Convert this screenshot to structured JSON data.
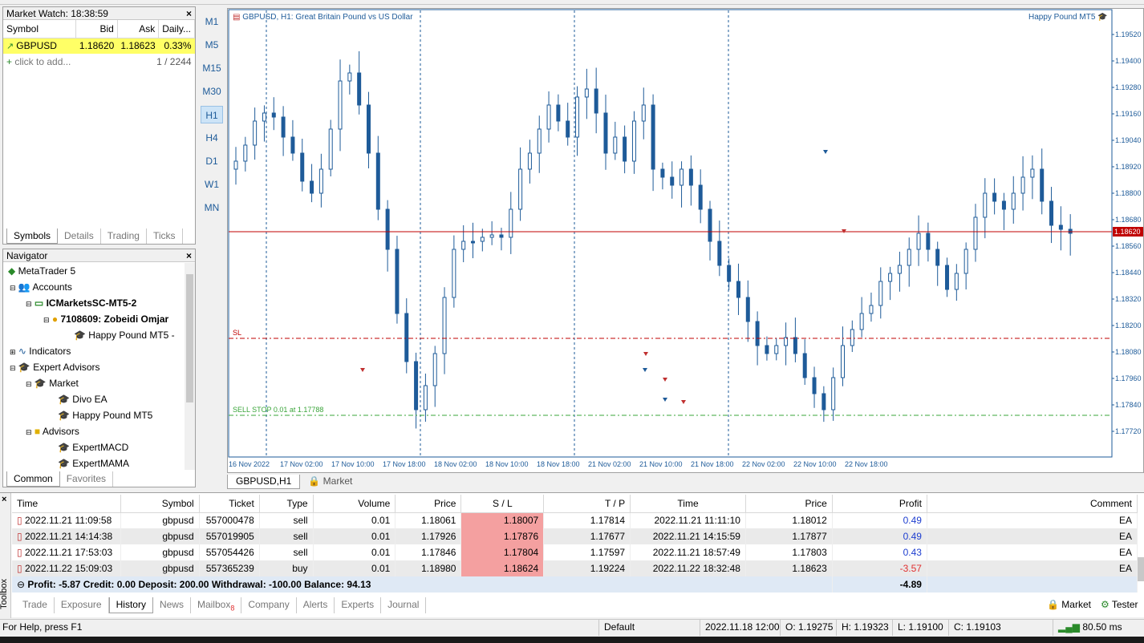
{
  "market_watch": {
    "title": "Market Watch: 18:38:59",
    "headers": [
      "Symbol",
      "Bid",
      "Ask",
      "Daily..."
    ],
    "row": {
      "symbol": "GBPUSD",
      "bid": "1.18620",
      "ask": "1.18623",
      "daily": "0.33%"
    },
    "add_placeholder": "click to add...",
    "count": "1 / 2244",
    "tabs": [
      "Symbols",
      "Details",
      "Trading",
      "Ticks"
    ]
  },
  "navigator": {
    "title": "Navigator",
    "items": [
      "MetaTrader 5",
      "Accounts",
      "ICMarketsSC-MT5-2",
      "7108609: Zobeidi Omjar",
      "Happy Pound MT5 -",
      "Indicators",
      "Expert Advisors",
      "Market",
      "Divo EA",
      "Happy Pound MT5",
      "Advisors",
      "ExpertMACD",
      "ExpertMAMA"
    ],
    "tabs": [
      "Common",
      "Favorites"
    ]
  },
  "timeframes": [
    "M1",
    "M5",
    "M15",
    "M30",
    "H1",
    "H4",
    "D1",
    "W1",
    "MN"
  ],
  "active_timeframe": "H1",
  "chart": {
    "title": "GBPUSD, H1:  Great Britain Pound vs US Dollar",
    "ea_label": "Happy Pound MT5",
    "price_labels": [
      "1.19520",
      "1.19400",
      "1.19280",
      "1.19160",
      "1.19040",
      "1.18920",
      "1.18800",
      "1.18680",
      "1.18560",
      "1.18440",
      "1.18320",
      "1.18200",
      "1.18080",
      "1.17960",
      "1.17840",
      "1.17720"
    ],
    "current_price": "1.18620",
    "time_labels": [
      "16 Nov 2022",
      "17 Nov 02:00",
      "17 Nov 10:00",
      "17 Nov 18:00",
      "18 Nov 02:00",
      "18 Nov 10:00",
      "18 Nov 18:00",
      "21 Nov 02:00",
      "21 Nov 10:00",
      "21 Nov 18:00",
      "22 Nov 02:00",
      "22 Nov 10:00",
      "22 Nov 18:00"
    ],
    "sl_label": "SL",
    "sell_stop_label": "SELL STOP 0.01 at 1.17788",
    "tabs": [
      "GBPUSD,H1",
      "Market"
    ],
    "colors": {
      "bull": "#1e5b99",
      "bear": "#1e5b99",
      "price_line": "#c00000",
      "sl_line": "#c00000",
      "pending_line": "#3aa53a"
    }
  },
  "history": {
    "headers": [
      "Time",
      "Symbol",
      "Ticket",
      "Type",
      "Volume",
      "Price",
      "S / L",
      "T / P",
      "Time",
      "Price",
      "Profit",
      "Comment"
    ],
    "rows": [
      [
        "2022.11.21 11:09:58",
        "gbpusd",
        "557000478",
        "sell",
        "0.01",
        "1.18061",
        "1.18007",
        "1.17814",
        "2022.11.21 11:11:10",
        "1.18012",
        "0.49",
        "EA"
      ],
      [
        "2022.11.21 14:14:38",
        "gbpusd",
        "557019905",
        "sell",
        "0.01",
        "1.17926",
        "1.17876",
        "1.17677",
        "2022.11.21 14:15:59",
        "1.17877",
        "0.49",
        "EA"
      ],
      [
        "2022.11.21 17:53:03",
        "gbpusd",
        "557054426",
        "sell",
        "0.01",
        "1.17846",
        "1.17804",
        "1.17597",
        "2022.11.21 18:57:49",
        "1.17803",
        "0.43",
        "EA"
      ],
      [
        "2022.11.22 15:09:03",
        "gbpusd",
        "557365239",
        "buy",
        "0.01",
        "1.18980",
        "1.18624",
        "1.19224",
        "2022.11.22 18:32:48",
        "1.18623",
        "-3.57",
        "EA"
      ]
    ],
    "summary": "Profit: -5.87  Credit: 0.00  Deposit: 200.00  Withdrawal: -100.00  Balance: 94.13",
    "summary_total": "-4.89",
    "toolbox_label": "Toolbox",
    "tabs": [
      "Trade",
      "Exposure",
      "History",
      "News",
      "Mailbox",
      "Company",
      "Alerts",
      "Experts",
      "Journal"
    ],
    "mailbox_badge": "8",
    "active_tab": "History",
    "right_buttons": [
      "Market",
      "Tester"
    ]
  },
  "status": {
    "help": "For Help, press F1",
    "profile": "Default",
    "datetime": "2022.11.18 12:00",
    "open": "O: 1.19275",
    "high": "H: 1.19323",
    "low": "L: 1.19100",
    "close": "C: 1.19103",
    "ping": "80.50 ms"
  }
}
